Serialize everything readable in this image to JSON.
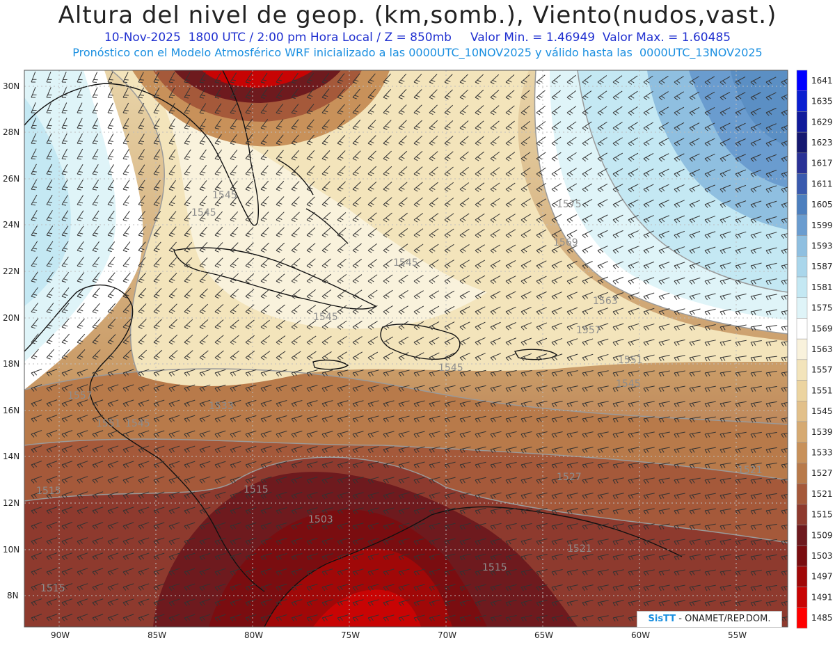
{
  "header": {
    "title": "Altura del nivel de geop. (km,somb.), Viento(nudos,vast.)",
    "subtitle_line1": "10-Nov-2025  1800 UTC / 2:00 pm Hora Local / Z = 850mb     Valor Min. = 1.46949  Valor Max. = 1.60485",
    "subtitle_line2": "Pronóstico con el Modelo Atmosférico WRF inicializado a las 0000UTC_10NOV2025 y válido hasta las  0000UTC_13NOV2025"
  },
  "map": {
    "lat_labels": [
      "30N",
      "28N",
      "26N",
      "24N",
      "22N",
      "20N",
      "18N",
      "16N",
      "14N",
      "12N",
      "10N",
      "8N"
    ],
    "lon_labels": [
      "90W",
      "85W",
      "80W",
      "75W",
      "70W",
      "65W",
      "60W",
      "55W"
    ],
    "contour_labels": [
      "1545",
      "1545",
      "1545",
      "1545",
      "1545",
      "1545",
      "1575",
      "1569",
      "1563",
      "1557",
      "1551",
      "1557",
      "1551",
      "1545",
      "1533",
      "1527",
      "1521",
      "1515",
      "1503",
      "1515",
      "1515",
      "1521",
      "1515"
    ],
    "colors": {
      "deep_red": "#b00000",
      "dark_maroon": "#6e0f14",
      "brown": "#a0522d",
      "tan": "#d9b98a",
      "cream": "#f6e8c4",
      "white": "#ffffff",
      "light_cyan": "#c8ecf4",
      "steel_blue": "#5b8fc4"
    }
  },
  "colorbar": {
    "levels": [
      "1641",
      "1635",
      "1629",
      "1623",
      "1617",
      "1611",
      "1605",
      "1599",
      "1593",
      "1587",
      "1581",
      "1575",
      "1569",
      "1563",
      "1557",
      "1551",
      "1545",
      "1539",
      "1533",
      "1527",
      "1521",
      "1515",
      "1509",
      "1503",
      "1497",
      "1491",
      "1485"
    ],
    "colors": [
      "#0000ff",
      "#0a1ed0",
      "#101a9a",
      "#151870",
      "#2a3296",
      "#3a5aae",
      "#4d7fbe",
      "#6a9ccf",
      "#8fbfe0",
      "#aad6eb",
      "#c4e8f3",
      "#dff4f8",
      "#ffffff",
      "#f9f2dc",
      "#f3e4bb",
      "#ecd4a0",
      "#e2c08a",
      "#d6aa72",
      "#c8915a",
      "#b87a4a",
      "#a5593a",
      "#8e3a2e",
      "#6e1a1e",
      "#7a0d10",
      "#a00808",
      "#c80404",
      "#ff0000"
    ]
  },
  "credit": {
    "brand": "SisTT",
    "text": " - ONAMET/REP.DOM."
  }
}
